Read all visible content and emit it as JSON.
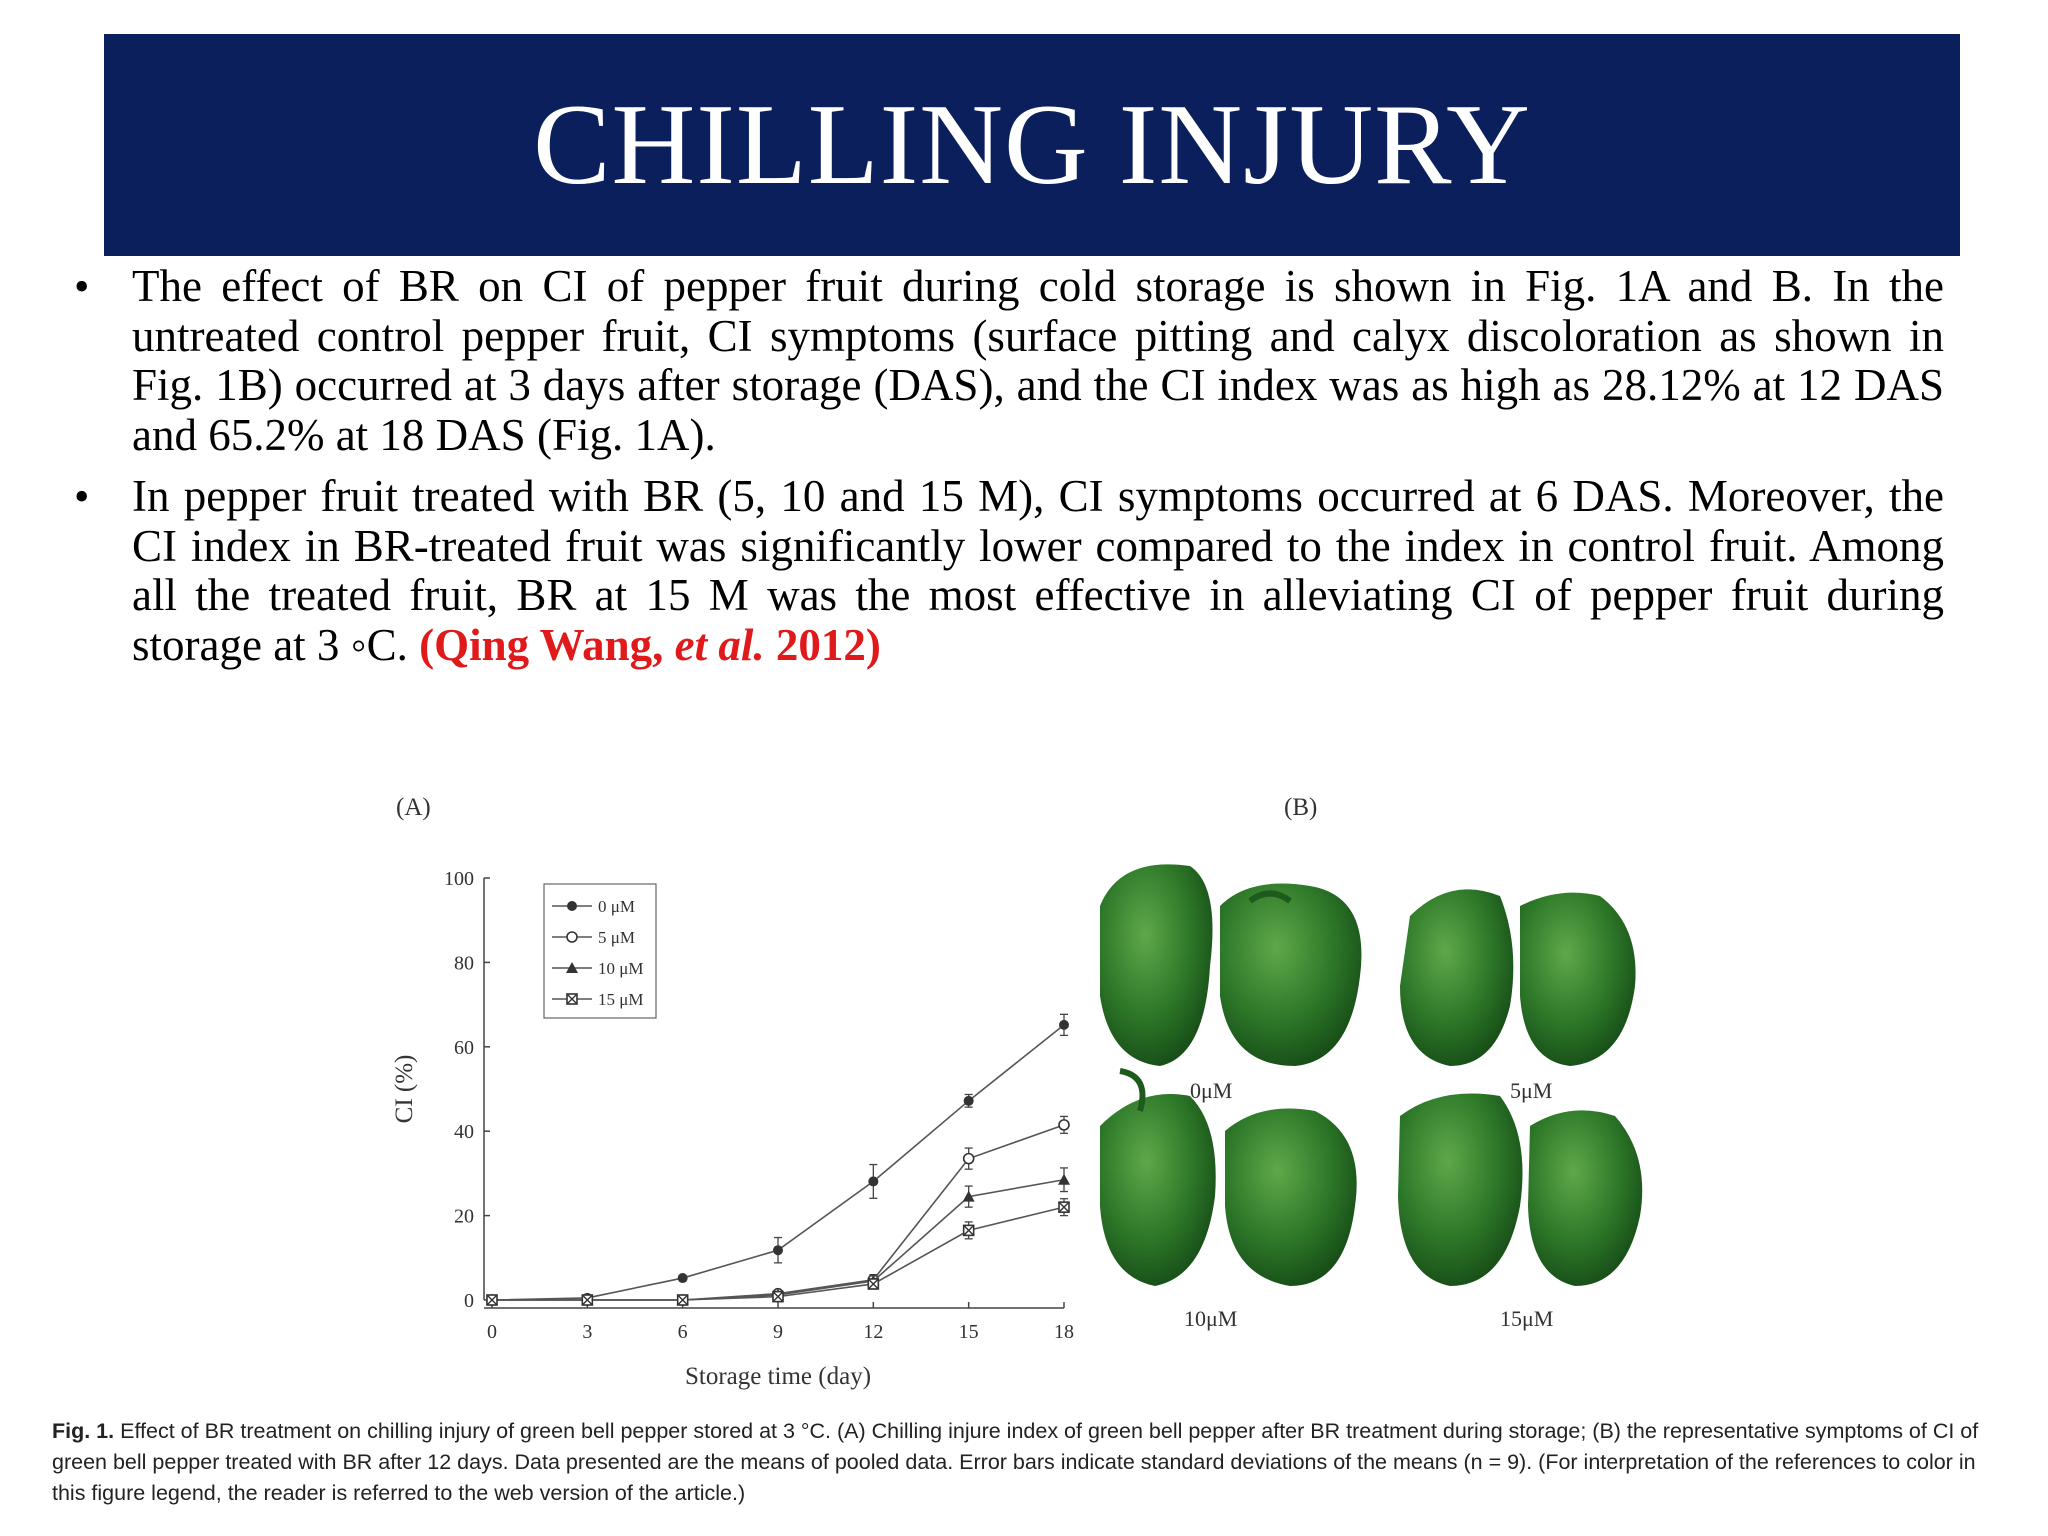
{
  "slide": {
    "title": "CHILLING INJURY",
    "bullets": [
      "The effect of BR on CI of pepper fruit during cold storage is shown in Fig. 1A and B. In the untreated control pepper fruit, CI symptoms (surface pitting and calyx discoloration as shown in Fig. 1B) occurred at 3 days after storage (DAS), and the CI index was as high as 28.12% at 12 DAS and 65.2% at 18 DAS (Fig. 1A).",
      "In pepper fruit treated with BR (5, 10 and 15 M), CI symptoms occurred at 6 DAS. Moreover, the CI index in BR-treated fruit was significantly lower compared to the index in control fruit. Among all the treated fruit, BR at 15 M was the most effective in alleviating CI of pepper fruit during storage at 3 ◦C."
    ],
    "citation": {
      "prefix": "(Qing Wang, ",
      "etal": "et al.",
      "suffix": " 2012)"
    }
  },
  "figure": {
    "panel_a_label": "(A)",
    "panel_b_label": "(B)",
    "pepper_labels": [
      "0μM",
      "5μM",
      "10μM",
      "15μM"
    ],
    "caption_bold": "Fig. 1.",
    "caption_text": "Effect of BR treatment on chilling injury of green bell pepper stored at 3 °C. (A) Chilling injure index of green bell pepper after BR treatment during storage; (B) the representative symptoms of CI of green bell pepper treated with BR after 12 days. Data presented are the means of pooled data. Error bars indicate standard deviations of the means (n = 9). (For interpretation of the references to color in this figure legend, the reader is referred to the web version of the article.)",
    "colors": {
      "title_bar": "#0b1f5c",
      "citation": "#e0191b",
      "pepper_green": "#2f7a2a"
    }
  },
  "chart_data": {
    "type": "line",
    "title": "",
    "xlabel": "Storage time (day)",
    "ylabel": "CI (%)",
    "x": [
      0,
      3,
      6,
      9,
      12,
      15,
      18
    ],
    "xlim": [
      0,
      18
    ],
    "ylim": [
      0,
      100
    ],
    "xticks": [
      0,
      3,
      6,
      9,
      12,
      15,
      18
    ],
    "yticks": [
      0,
      20,
      40,
      60,
      80,
      100
    ],
    "grid": false,
    "legend_position": "top-left",
    "series": [
      {
        "name": "0 μM",
        "marker": "filled-circle",
        "values": [
          0,
          0.5,
          5.2,
          11.8,
          28.1,
          47.2,
          65.2
        ],
        "errors": [
          0,
          0.5,
          0.5,
          3.0,
          4.0,
          1.5,
          2.5
        ]
      },
      {
        "name": "5 μM",
        "marker": "open-circle",
        "values": [
          0,
          0,
          0,
          1.5,
          4.8,
          33.5,
          41.5
        ],
        "errors": [
          0,
          0,
          0,
          0.8,
          1.2,
          2.5,
          2.0
        ]
      },
      {
        "name": "10 μM",
        "marker": "filled-triangle",
        "values": [
          0,
          0,
          0,
          1.2,
          4.5,
          24.5,
          28.5
        ],
        "errors": [
          0,
          0,
          0,
          0.8,
          1.2,
          2.5,
          2.8
        ]
      },
      {
        "name": "15 μM",
        "marker": "crossed-square",
        "values": [
          0,
          0,
          0,
          0.8,
          3.8,
          16.5,
          22.0
        ],
        "errors": [
          0,
          0,
          0,
          0.8,
          1.2,
          2.0,
          2.0
        ]
      }
    ]
  }
}
